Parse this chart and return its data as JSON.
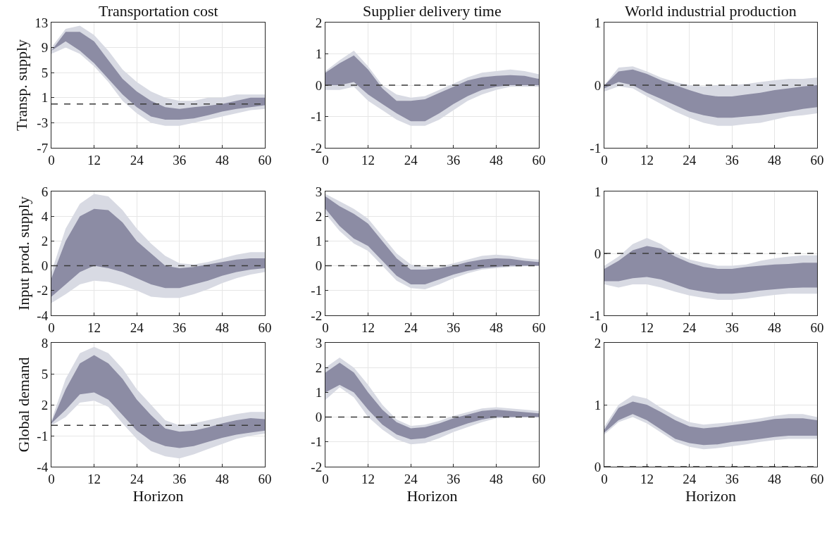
{
  "chart_data": [
    {
      "type": "area",
      "title": "Transportation cost",
      "ylabel": "Transp. supply",
      "x": [
        0,
        4,
        8,
        12,
        16,
        20,
        24,
        28,
        32,
        36,
        40,
        44,
        48,
        52,
        56,
        60
      ],
      "xlim": [
        0,
        60
      ],
      "xticks": [
        0,
        12,
        24,
        36,
        48,
        60
      ],
      "ylim": [
        -7,
        13
      ],
      "yticks": [
        -7,
        -3,
        1,
        5,
        9,
        13
      ],
      "grid": true,
      "ref_lines": [
        {
          "axis": "y",
          "value": 0,
          "line_style": "dashed",
          "color": "#3a3a3a"
        }
      ],
      "series": [
        {
          "color": "#d8dae3",
          "values": [
            null,
            null,
            null,
            null,
            null,
            null,
            null,
            null,
            null,
            null,
            null,
            null,
            null,
            null,
            null,
            null
          ],
          "upper": [
            9,
            12,
            12.5,
            11,
            8.5,
            5.5,
            3.5,
            2,
            1,
            0.5,
            0.5,
            1,
            1,
            1.5,
            1.5,
            1.5
          ],
          "lower": [
            8,
            9,
            8,
            6,
            3.5,
            0.5,
            -1.5,
            -3,
            -3.5,
            -3.5,
            -3,
            -2.5,
            -2,
            -1.5,
            -1,
            -0.8
          ]
        },
        {
          "color": "#8c8ca4",
          "values": [
            null,
            null,
            null,
            null,
            null,
            null,
            null,
            null,
            null,
            null,
            null,
            null,
            null,
            null,
            null,
            null
          ],
          "upper": [
            8.5,
            11.5,
            11.5,
            10,
            7,
            4,
            2,
            0.5,
            -0.5,
            -0.8,
            -0.5,
            -0.3,
            0,
            0.5,
            1,
            1
          ],
          "lower": [
            8.5,
            10,
            8.5,
            6.5,
            4,
            1.5,
            -0.5,
            -2,
            -2.5,
            -2.5,
            -2.3,
            -1.8,
            -1.2,
            -0.8,
            -0.5,
            -0.2
          ]
        }
      ]
    },
    {
      "type": "area",
      "title": "Supplier delivery time",
      "x": [
        0,
        4,
        8,
        12,
        16,
        20,
        24,
        28,
        32,
        36,
        40,
        44,
        48,
        52,
        56,
        60
      ],
      "xlim": [
        0,
        60
      ],
      "xticks": [
        0,
        12,
        24,
        36,
        48,
        60
      ],
      "ylim": [
        -2,
        2
      ],
      "yticks": [
        -2,
        -1,
        0,
        1,
        2
      ],
      "grid": true,
      "ref_lines": [
        {
          "axis": "y",
          "value": 0,
          "line_style": "dashed",
          "color": "#3a3a3a"
        }
      ],
      "series": [
        {
          "color": "#d8dae3",
          "values": [
            null,
            null,
            null,
            null,
            null,
            null,
            null,
            null,
            null,
            null,
            null,
            null,
            null,
            null,
            null,
            null
          ],
          "upper": [
            0.45,
            0.8,
            1.1,
            0.6,
            0.0,
            -0.3,
            -0.4,
            -0.35,
            -0.15,
            0.05,
            0.25,
            0.4,
            0.45,
            0.5,
            0.45,
            0.35
          ],
          "lower": [
            -0.15,
            -0.15,
            -0.05,
            -0.5,
            -0.8,
            -1.1,
            -1.3,
            -1.3,
            -1.1,
            -0.8,
            -0.5,
            -0.3,
            -0.15,
            -0.05,
            -0.05,
            -0.05
          ]
        },
        {
          "color": "#8c8ca4",
          "values": [
            null,
            null,
            null,
            null,
            null,
            null,
            null,
            null,
            null,
            null,
            null,
            null,
            null,
            null,
            null,
            null
          ],
          "upper": [
            0.4,
            0.7,
            0.95,
            0.5,
            -0.1,
            -0.5,
            -0.5,
            -0.45,
            -0.25,
            -0.05,
            0.15,
            0.25,
            0.3,
            0.32,
            0.3,
            0.2
          ],
          "lower": [
            0.0,
            0.0,
            0.1,
            -0.3,
            -0.6,
            -0.9,
            -1.15,
            -1.15,
            -0.9,
            -0.6,
            -0.35,
            -0.15,
            -0.05,
            0,
            0,
            0
          ]
        }
      ]
    },
    {
      "type": "area",
      "title": "World industrial production",
      "x": [
        0,
        4,
        8,
        12,
        16,
        20,
        24,
        28,
        32,
        36,
        40,
        44,
        48,
        52,
        56,
        60
      ],
      "xlim": [
        0,
        60
      ],
      "xticks": [
        0,
        12,
        24,
        36,
        48,
        60
      ],
      "ylim": [
        -1,
        1
      ],
      "yticks": [
        -1,
        0,
        1
      ],
      "grid": true,
      "ref_lines": [
        {
          "axis": "y",
          "value": 0,
          "line_style": "dashed",
          "color": "#3a3a3a"
        }
      ],
      "series": [
        {
          "color": "#d8dae3",
          "values": [
            null,
            null,
            null,
            null,
            null,
            null,
            null,
            null,
            null,
            null,
            null,
            null,
            null,
            null,
            null,
            null
          ],
          "upper": [
            0.0,
            0.28,
            0.3,
            0.22,
            0.12,
            0.05,
            0.0,
            -0.02,
            0.0,
            0.0,
            0.02,
            0.05,
            0.08,
            0.1,
            0.1,
            0.12
          ],
          "lower": [
            -0.1,
            -0.02,
            -0.05,
            -0.18,
            -0.3,
            -0.42,
            -0.52,
            -0.6,
            -0.65,
            -0.65,
            -0.62,
            -0.6,
            -0.55,
            -0.5,
            -0.48,
            -0.45
          ]
        },
        {
          "color": "#8c8ca4",
          "values": [
            null,
            null,
            null,
            null,
            null,
            null,
            null,
            null,
            null,
            null,
            null,
            null,
            null,
            null,
            null,
            null
          ],
          "upper": [
            0.0,
            0.22,
            0.25,
            0.18,
            0.08,
            0.0,
            -0.08,
            -0.15,
            -0.18,
            -0.18,
            -0.15,
            -0.12,
            -0.08,
            -0.05,
            -0.02,
            0.0
          ],
          "lower": [
            -0.05,
            0.05,
            0.0,
            -0.12,
            -0.22,
            -0.32,
            -0.42,
            -0.48,
            -0.52,
            -0.52,
            -0.5,
            -0.48,
            -0.45,
            -0.42,
            -0.38,
            -0.35
          ]
        }
      ]
    },
    {
      "type": "area",
      "ylabel": "Input prod. supply",
      "x": [
        0,
        4,
        8,
        12,
        16,
        20,
        24,
        28,
        32,
        36,
        40,
        44,
        48,
        52,
        56,
        60
      ],
      "xlim": [
        0,
        60
      ],
      "xticks": [
        0,
        12,
        24,
        36,
        48,
        60
      ],
      "ylim": [
        -4,
        6
      ],
      "yticks": [
        -4,
        -2,
        0,
        2,
        4,
        6
      ],
      "grid": true,
      "ref_lines": [
        {
          "axis": "y",
          "value": 0,
          "line_style": "dashed",
          "color": "#3a3a3a"
        }
      ],
      "series": [
        {
          "color": "#d8dae3",
          "values": [
            null,
            null,
            null,
            null,
            null,
            null,
            null,
            null,
            null,
            null,
            null,
            null,
            null,
            null,
            null,
            null
          ],
          "upper": [
            -0.5,
            3,
            5,
            5.8,
            5.6,
            4.5,
            3,
            1.8,
            0.8,
            0.2,
            0.1,
            0.3,
            0.6,
            0.9,
            1.1,
            1.1
          ],
          "lower": [
            -3,
            -2.3,
            -1.5,
            -1.2,
            -1.3,
            -1.6,
            -2,
            -2.5,
            -2.6,
            -2.6,
            -2.3,
            -1.9,
            -1.4,
            -1,
            -0.7,
            -0.5
          ]
        },
        {
          "color": "#8c8ca4",
          "values": [
            null,
            null,
            null,
            null,
            null,
            null,
            null,
            null,
            null,
            null,
            null,
            null,
            null,
            null,
            null,
            null
          ],
          "upper": [
            -1,
            2,
            4,
            4.6,
            4.5,
            3.5,
            2,
            1,
            0,
            -0.2,
            -0.1,
            0.1,
            0.3,
            0.5,
            0.6,
            0.6
          ],
          "lower": [
            -2.5,
            -1.5,
            -0.5,
            0,
            -0.2,
            -0.5,
            -1,
            -1.5,
            -1.8,
            -1.8,
            -1.5,
            -1.2,
            -0.8,
            -0.5,
            -0.3,
            -0.2
          ]
        }
      ]
    },
    {
      "type": "area",
      "x": [
        0,
        4,
        8,
        12,
        16,
        20,
        24,
        28,
        32,
        36,
        40,
        44,
        48,
        52,
        56,
        60
      ],
      "xlim": [
        0,
        60
      ],
      "xticks": [
        0,
        12,
        24,
        36,
        48,
        60
      ],
      "ylim": [
        -2,
        3
      ],
      "yticks": [
        -2,
        -1,
        0,
        1,
        2,
        3
      ],
      "grid": true,
      "ref_lines": [
        {
          "axis": "y",
          "value": 0,
          "line_style": "dashed",
          "color": "#3a3a3a"
        }
      ],
      "series": [
        {
          "color": "#d8dae3",
          "values": [
            null,
            null,
            null,
            null,
            null,
            null,
            null,
            null,
            null,
            null,
            null,
            null,
            null,
            null,
            null,
            null
          ],
          "upper": [
            2.9,
            2.6,
            2.3,
            1.9,
            1.2,
            0.5,
            0.05,
            -0.05,
            -0.05,
            0.1,
            0.25,
            0.4,
            0.45,
            0.4,
            0.3,
            0.25
          ],
          "lower": [
            2.1,
            1.4,
            0.9,
            0.6,
            0.0,
            -0.6,
            -0.9,
            -0.95,
            -0.75,
            -0.5,
            -0.3,
            -0.15,
            -0.1,
            -0.05,
            -0.02,
            0
          ]
        },
        {
          "color": "#8c8ca4",
          "values": [
            null,
            null,
            null,
            null,
            null,
            null,
            null,
            null,
            null,
            null,
            null,
            null,
            null,
            null,
            null,
            null
          ],
          "upper": [
            2.8,
            2.4,
            2.1,
            1.7,
            1.0,
            0.3,
            -0.15,
            -0.15,
            -0.1,
            0.0,
            0.15,
            0.25,
            0.3,
            0.28,
            0.2,
            0.15
          ],
          "lower": [
            2.3,
            1.6,
            1.1,
            0.8,
            0.2,
            -0.4,
            -0.75,
            -0.75,
            -0.55,
            -0.35,
            -0.2,
            -0.1,
            -0.05,
            0,
            0,
            0
          ]
        }
      ]
    },
    {
      "type": "area",
      "x": [
        0,
        4,
        8,
        12,
        16,
        20,
        24,
        28,
        32,
        36,
        40,
        44,
        48,
        52,
        56,
        60
      ],
      "xlim": [
        0,
        60
      ],
      "xticks": [
        0,
        12,
        24,
        36,
        48,
        60
      ],
      "ylim": [
        -1,
        1
      ],
      "yticks": [
        -1,
        0,
        1
      ],
      "grid": true,
      "ref_lines": [
        {
          "axis": "y",
          "value": 0,
          "line_style": "dashed",
          "color": "#3a3a3a"
        }
      ],
      "series": [
        {
          "color": "#d8dae3",
          "values": [
            null,
            null,
            null,
            null,
            null,
            null,
            null,
            null,
            null,
            null,
            null,
            null,
            null,
            null,
            null,
            null
          ],
          "upper": [
            -0.2,
            -0.05,
            0.15,
            0.25,
            0.15,
            0.0,
            -0.1,
            -0.15,
            -0.2,
            -0.2,
            -0.18,
            -0.12,
            -0.08,
            -0.05,
            -0.03,
            -0.03
          ],
          "lower": [
            -0.5,
            -0.55,
            -0.5,
            -0.5,
            -0.55,
            -0.62,
            -0.68,
            -0.72,
            -0.75,
            -0.75,
            -0.73,
            -0.7,
            -0.67,
            -0.65,
            -0.65,
            -0.65
          ]
        },
        {
          "color": "#8c8ca4",
          "values": [
            null,
            null,
            null,
            null,
            null,
            null,
            null,
            null,
            null,
            null,
            null,
            null,
            null,
            null,
            null,
            null
          ],
          "upper": [
            -0.25,
            -0.12,
            0.05,
            0.12,
            0.08,
            -0.05,
            -0.15,
            -0.22,
            -0.25,
            -0.25,
            -0.22,
            -0.2,
            -0.18,
            -0.17,
            -0.15,
            -0.15
          ],
          "lower": [
            -0.45,
            -0.45,
            -0.4,
            -0.38,
            -0.42,
            -0.5,
            -0.58,
            -0.62,
            -0.65,
            -0.65,
            -0.63,
            -0.6,
            -0.58,
            -0.56,
            -0.55,
            -0.55
          ]
        }
      ]
    },
    {
      "type": "area",
      "ylabel": "Global demand",
      "xlabel": "Horizon",
      "x": [
        0,
        4,
        8,
        12,
        16,
        20,
        24,
        28,
        32,
        36,
        40,
        44,
        48,
        52,
        56,
        60
      ],
      "xlim": [
        0,
        60
      ],
      "xticks": [
        0,
        12,
        24,
        36,
        48,
        60
      ],
      "ylim": [
        -4,
        8
      ],
      "yticks": [
        -4,
        -1,
        2,
        5,
        8
      ],
      "grid": true,
      "ref_lines": [
        {
          "axis": "y",
          "value": 0,
          "line_style": "dashed",
          "color": "#3a3a3a"
        }
      ],
      "series": [
        {
          "color": "#d8dae3",
          "values": [
            null,
            null,
            null,
            null,
            null,
            null,
            null,
            null,
            null,
            null,
            null,
            null,
            null,
            null,
            null,
            null
          ],
          "upper": [
            0.5,
            4.5,
            7,
            7.6,
            7,
            5.5,
            3.5,
            2,
            0.5,
            0,
            0.2,
            0.5,
            0.8,
            1.1,
            1.3,
            1.3
          ],
          "lower": [
            0,
            0.8,
            2.2,
            2.4,
            1.8,
            0.2,
            -1.3,
            -2.5,
            -3,
            -3.2,
            -2.8,
            -2.3,
            -1.8,
            -1.3,
            -1,
            -0.8
          ]
        },
        {
          "color": "#8c8ca4",
          "values": [
            null,
            null,
            null,
            null,
            null,
            null,
            null,
            null,
            null,
            null,
            null,
            null,
            null,
            null,
            null,
            null
          ],
          "upper": [
            0.3,
            3.5,
            6,
            6.8,
            6,
            4.5,
            2.5,
            1,
            -0.3,
            -0.6,
            -0.5,
            -0.2,
            0.2,
            0.5,
            0.7,
            0.6
          ],
          "lower": [
            0.2,
            1.5,
            3,
            3.2,
            2.5,
            1,
            -0.5,
            -1.5,
            -2,
            -2.2,
            -2,
            -1.6,
            -1.2,
            -0.9,
            -0.7,
            -0.5
          ]
        }
      ]
    },
    {
      "type": "area",
      "xlabel": "Horizon",
      "x": [
        0,
        4,
        8,
        12,
        16,
        20,
        24,
        28,
        32,
        36,
        40,
        44,
        48,
        52,
        56,
        60
      ],
      "xlim": [
        0,
        60
      ],
      "xticks": [
        0,
        12,
        24,
        36,
        48,
        60
      ],
      "ylim": [
        -2,
        3
      ],
      "yticks": [
        -2,
        -1,
        0,
        1,
        2,
        3
      ],
      "grid": true,
      "ref_lines": [
        {
          "axis": "y",
          "value": 0,
          "line_style": "dashed",
          "color": "#3a3a3a"
        }
      ],
      "series": [
        {
          "color": "#d8dae3",
          "values": [
            null,
            null,
            null,
            null,
            null,
            null,
            null,
            null,
            null,
            null,
            null,
            null,
            null,
            null,
            null,
            null
          ],
          "upper": [
            2.0,
            2.4,
            2.0,
            1.3,
            0.5,
            -0.1,
            -0.35,
            -0.3,
            -0.15,
            0.05,
            0.2,
            0.35,
            0.4,
            0.35,
            0.3,
            0.25
          ],
          "lower": [
            0.7,
            1.2,
            0.8,
            0.0,
            -0.5,
            -0.9,
            -1.1,
            -1.05,
            -0.85,
            -0.6,
            -0.4,
            -0.2,
            -0.05,
            -0.02,
            0,
            0
          ]
        },
        {
          "color": "#8c8ca4",
          "values": [
            null,
            null,
            null,
            null,
            null,
            null,
            null,
            null,
            null,
            null,
            null,
            null,
            null,
            null,
            null,
            null
          ],
          "upper": [
            1.8,
            2.2,
            1.8,
            1.0,
            0.3,
            -0.2,
            -0.45,
            -0.4,
            -0.25,
            -0.05,
            0.1,
            0.25,
            0.3,
            0.25,
            0.2,
            0.15
          ],
          "lower": [
            1.0,
            1.3,
            1.0,
            0.3,
            -0.3,
            -0.7,
            -0.9,
            -0.85,
            -0.65,
            -0.45,
            -0.25,
            -0.1,
            0,
            0,
            0,
            0
          ]
        }
      ]
    },
    {
      "type": "area",
      "xlabel": "Horizon",
      "x": [
        0,
        4,
        8,
        12,
        16,
        20,
        24,
        28,
        32,
        36,
        40,
        44,
        48,
        52,
        56,
        60
      ],
      "xlim": [
        0,
        60
      ],
      "xticks": [
        0,
        12,
        24,
        36,
        48,
        60
      ],
      "ylim": [
        0,
        2
      ],
      "yticks": [
        0,
        1,
        2
      ],
      "grid": true,
      "ref_lines": [
        {
          "axis": "y",
          "value": 0,
          "line_style": "dashed",
          "color": "#3a3a3a"
        }
      ],
      "series": [
        {
          "color": "#d8dae3",
          "values": [
            null,
            null,
            null,
            null,
            null,
            null,
            null,
            null,
            null,
            null,
            null,
            null,
            null,
            null,
            null,
            null
          ],
          "upper": [
            0.65,
            1.0,
            1.15,
            1.1,
            0.95,
            0.82,
            0.72,
            0.68,
            0.7,
            0.72,
            0.75,
            0.78,
            0.82,
            0.85,
            0.85,
            0.8
          ],
          "lower": [
            0.52,
            0.72,
            0.8,
            0.7,
            0.55,
            0.4,
            0.32,
            0.28,
            0.3,
            0.33,
            0.36,
            0.4,
            0.43,
            0.45,
            0.45,
            0.45
          ]
        },
        {
          "color": "#8c8ca4",
          "values": [
            null,
            null,
            null,
            null,
            null,
            null,
            null,
            null,
            null,
            null,
            null,
            null,
            null,
            null,
            null,
            null
          ],
          "upper": [
            0.6,
            0.95,
            1.05,
            1.0,
            0.88,
            0.75,
            0.65,
            0.62,
            0.64,
            0.67,
            0.7,
            0.73,
            0.77,
            0.78,
            0.78,
            0.75
          ],
          "lower": [
            0.55,
            0.75,
            0.85,
            0.75,
            0.6,
            0.45,
            0.38,
            0.35,
            0.36,
            0.4,
            0.42,
            0.45,
            0.48,
            0.5,
            0.5,
            0.5
          ]
        }
      ]
    }
  ]
}
